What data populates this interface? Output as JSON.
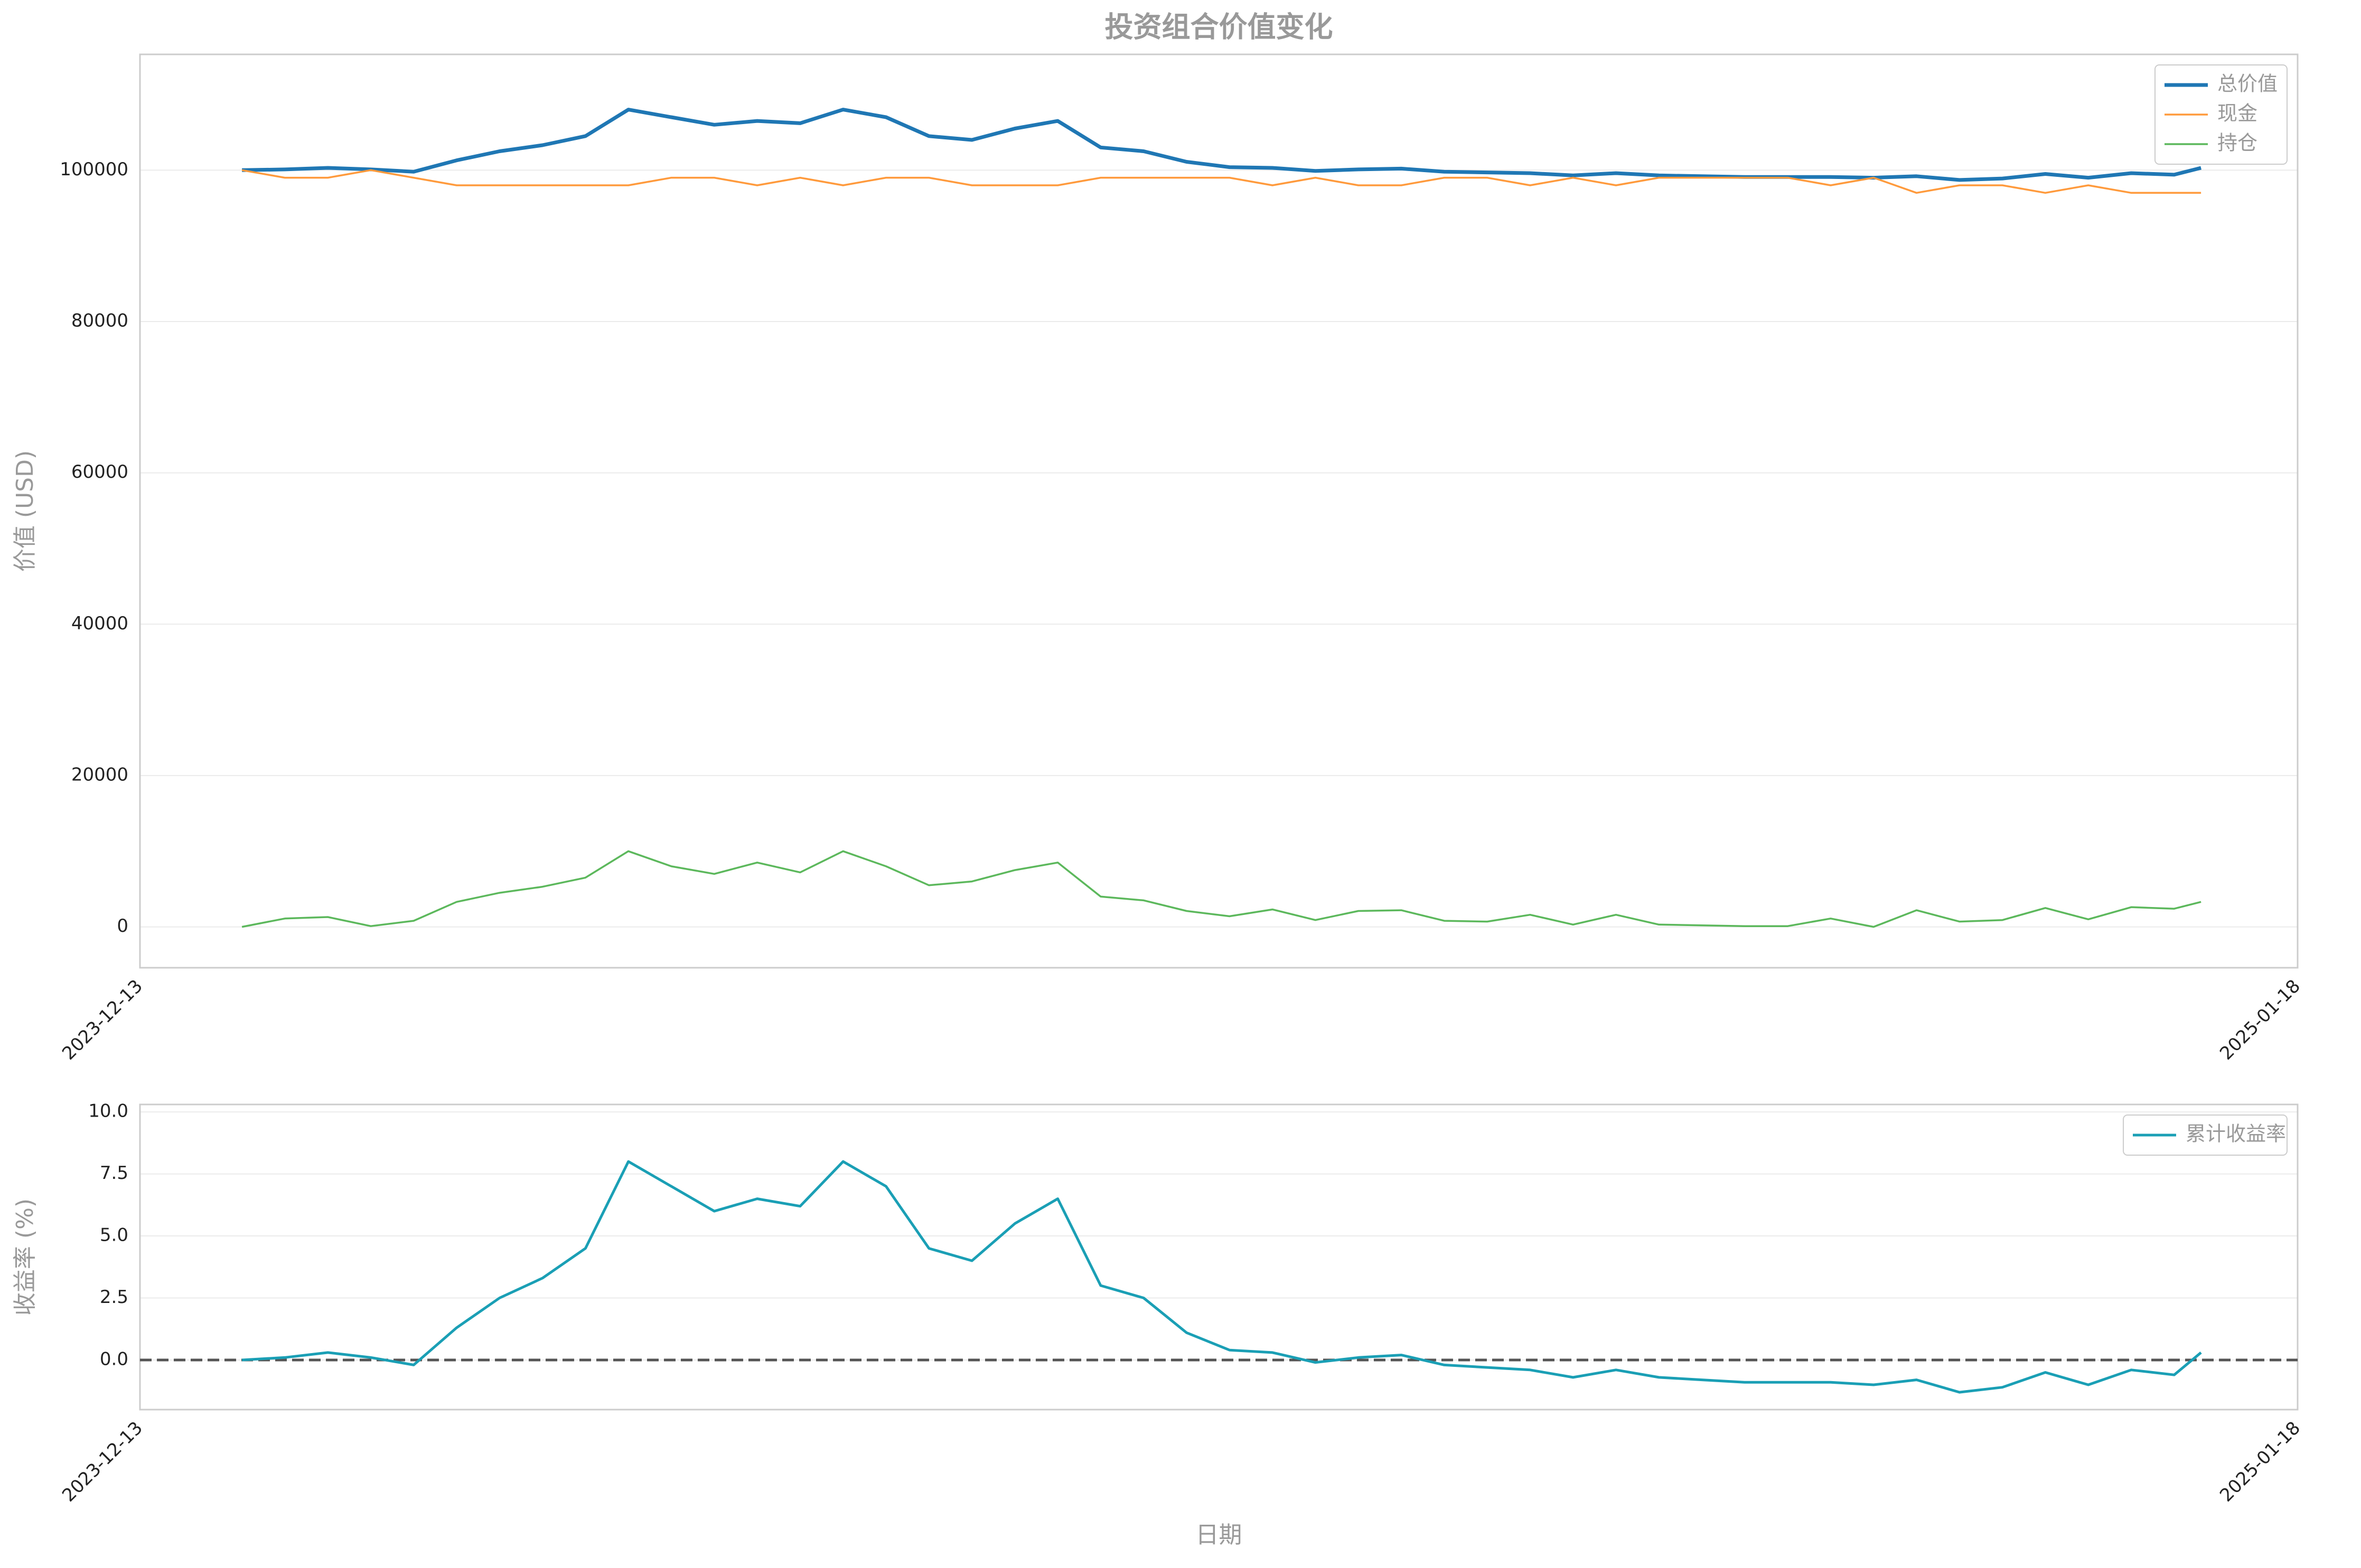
{
  "chart_data": [
    {
      "type": "line",
      "title": "投资组合价值变化",
      "y_label": "价值 (USD)",
      "x": [
        "2024-01-01",
        "2024-01-09",
        "2024-01-17",
        "2024-01-25",
        "2024-02-02",
        "2024-02-10",
        "2024-02-18",
        "2024-02-26",
        "2024-03-05",
        "2024-03-13",
        "2024-03-21",
        "2024-03-29",
        "2024-04-06",
        "2024-04-14",
        "2024-04-22",
        "2024-04-30",
        "2024-05-08",
        "2024-05-16",
        "2024-05-24",
        "2024-06-01",
        "2024-06-09",
        "2024-06-17",
        "2024-06-25",
        "2024-07-03",
        "2024-07-11",
        "2024-07-19",
        "2024-07-27",
        "2024-08-04",
        "2024-08-12",
        "2024-08-20",
        "2024-08-28",
        "2024-09-05",
        "2024-09-13",
        "2024-09-21",
        "2024-09-29",
        "2024-10-07",
        "2024-10-15",
        "2024-10-23",
        "2024-10-31",
        "2024-11-08",
        "2024-11-16",
        "2024-11-24",
        "2024-12-02",
        "2024-12-10",
        "2024-12-18",
        "2024-12-26",
        "2024-12-31"
      ],
      "series": [
        {
          "name": "总价值",
          "color": "#1f77b4",
          "values": [
            100000,
            100100,
            100300,
            100100,
            99800,
            101300,
            102500,
            103300,
            104500,
            108000,
            107000,
            106000,
            106500,
            106200,
            108000,
            107000,
            104500,
            104000,
            105500,
            106500,
            103000,
            102500,
            101100,
            100400,
            100300,
            99900,
            100100,
            100200,
            99800,
            99700,
            99600,
            99300,
            99600,
            99300,
            99200,
            99100,
            99100,
            99100,
            99000,
            99200,
            98700,
            98900,
            99500,
            99000,
            99600,
            99400,
            100300
          ]
        },
        {
          "name": "现金",
          "color": "#ff9a3c",
          "values": [
            100000,
            99000,
            99000,
            100000,
            99000,
            98000,
            98000,
            98000,
            98000,
            98000,
            99000,
            99000,
            98000,
            99000,
            98000,
            99000,
            99000,
            98000,
            98000,
            98000,
            99000,
            99000,
            99000,
            99000,
            98000,
            99000,
            98000,
            98000,
            99000,
            99000,
            98000,
            99000,
            98000,
            99000,
            99000,
            99000,
            99000,
            98000,
            99000,
            97000,
            98000,
            98000,
            97000,
            98000,
            97000,
            97000,
            97000
          ]
        },
        {
          "name": "持仓",
          "color": "#5cb85c",
          "values": [
            0,
            1100,
            1300,
            100,
            800,
            3300,
            4500,
            5300,
            6500,
            10000,
            8000,
            7000,
            8500,
            7200,
            10000,
            8000,
            5500,
            6000,
            7500,
            8500,
            4000,
            3500,
            2100,
            1400,
            2300,
            900,
            2100,
            2200,
            800,
            700,
            1600,
            300,
            1600,
            300,
            200,
            100,
            100,
            1100,
            0,
            2200,
            700,
            900,
            2500,
            1000,
            2600,
            2400,
            3300
          ]
        }
      ],
      "xlim": [
        "2023-12-13",
        "2025-01-18"
      ],
      "xticks": [
        "2023-12-13",
        "2025-01-18"
      ],
      "ylim": [
        -5400,
        115300
      ],
      "yticks": [
        0,
        20000,
        40000,
        60000,
        80000,
        100000
      ],
      "grid": true,
      "legend": "upper right"
    },
    {
      "type": "line",
      "x_label": "日期",
      "y_label": "收益率 (%)",
      "x": [
        "2024-01-01",
        "2024-01-09",
        "2024-01-17",
        "2024-01-25",
        "2024-02-02",
        "2024-02-10",
        "2024-02-18",
        "2024-02-26",
        "2024-03-05",
        "2024-03-13",
        "2024-03-21",
        "2024-03-29",
        "2024-04-06",
        "2024-04-14",
        "2024-04-22",
        "2024-04-30",
        "2024-05-08",
        "2024-05-16",
        "2024-05-24",
        "2024-06-01",
        "2024-06-09",
        "2024-06-17",
        "2024-06-25",
        "2024-07-03",
        "2024-07-11",
        "2024-07-19",
        "2024-07-27",
        "2024-08-04",
        "2024-08-12",
        "2024-08-20",
        "2024-08-28",
        "2024-09-05",
        "2024-09-13",
        "2024-09-21",
        "2024-09-29",
        "2024-10-07",
        "2024-10-15",
        "2024-10-23",
        "2024-10-31",
        "2024-11-08",
        "2024-11-16",
        "2024-11-24",
        "2024-12-02",
        "2024-12-10",
        "2024-12-18",
        "2024-12-26",
        "2024-12-31"
      ],
      "series": [
        {
          "name": "累计收益率",
          "color": "#1a9fb5",
          "values": [
            0,
            0.1,
            0.3,
            0.1,
            -0.2,
            1.3,
            2.5,
            3.3,
            4.5,
            8.0,
            7.0,
            6.0,
            6.5,
            6.2,
            8.0,
            7.0,
            4.5,
            4.0,
            5.5,
            6.5,
            3.0,
            2.5,
            1.1,
            0.4,
            0.3,
            -0.1,
            0.1,
            0.2,
            -0.2,
            -0.3,
            -0.4,
            -0.7,
            -0.4,
            -0.7,
            -0.8,
            -0.9,
            -0.9,
            -0.9,
            -1.0,
            -0.8,
            -1.3,
            -1.1,
            -0.5,
            -1.0,
            -0.4,
            -0.6,
            0.3
          ]
        }
      ],
      "reference_line": 0,
      "xlim": [
        "2023-12-13",
        "2025-01-18"
      ],
      "xticks": [
        "2023-12-13",
        "2025-01-18"
      ],
      "ylim": [
        -2.0,
        10.3
      ],
      "yticks": [
        {
          "value": 0,
          "label": "0.0"
        },
        {
          "value": 2.5,
          "label": "2.5"
        },
        {
          "value": 5,
          "label": "5.0"
        },
        {
          "value": 7.5,
          "label": "7.5"
        },
        {
          "value": 10,
          "label": "10.0"
        }
      ],
      "grid": true,
      "legend": "upper right"
    }
  ]
}
